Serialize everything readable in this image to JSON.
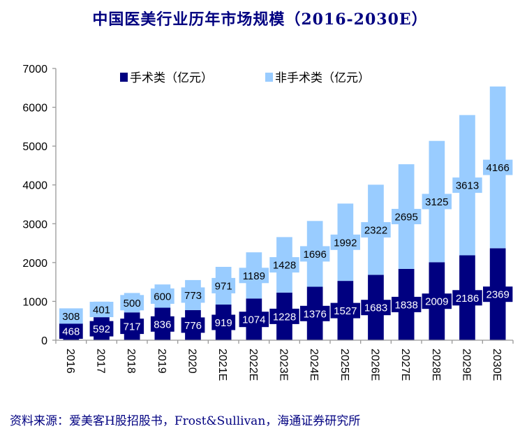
{
  "chart_data": {
    "type": "bar",
    "stacked": true,
    "title": "中国医美行业历年市场规模（2016-2030E）",
    "xlabel": "",
    "ylabel": "",
    "ylim": [
      0,
      7000
    ],
    "yticks": [
      0,
      1000,
      2000,
      3000,
      4000,
      5000,
      6000,
      7000
    ],
    "grid": false,
    "legend_position": "top",
    "categories": [
      "2016",
      "2017",
      "2018",
      "2019",
      "2020",
      "2021E",
      "2022E",
      "2023E",
      "2024E",
      "2025E",
      "2026E",
      "2027E",
      "2028E",
      "2029E",
      "2030E"
    ],
    "series": [
      {
        "name": "手术类（亿元）",
        "color": "#000080",
        "label_color": "#ffffff",
        "values": [
          468,
          592,
          717,
          836,
          776,
          919,
          1074,
          1228,
          1376,
          1527,
          1683,
          1838,
          2009,
          2186,
          2369
        ]
      },
      {
        "name": "非手术类（亿元）",
        "color": "#99CCFF",
        "label_color": "#000000",
        "values": [
          308,
          401,
          500,
          600,
          773,
          971,
          1189,
          1428,
          1696,
          1992,
          2322,
          2695,
          3125,
          3613,
          4166
        ]
      }
    ]
  },
  "source": "资料来源：爱美客H股招股书，Frost&Sullivan，海通证券研究所"
}
